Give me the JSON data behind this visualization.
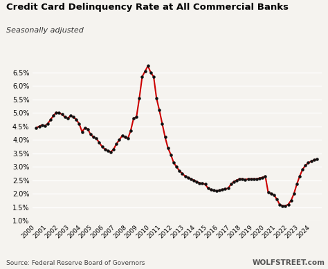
{
  "title": "Credit Card Delinquency Rate at All Commercial Banks",
  "subtitle": "Seasonally adjusted",
  "source": "Source: Federal Reserve Board of Governors",
  "watermark": "WOLFSTREET.com",
  "line_color": "#cc0000",
  "marker_color": "#111111",
  "bg_color": "#f5f3ef",
  "ylim": [
    1.0,
    7.0
  ],
  "yticks": [
    1.0,
    1.5,
    2.0,
    2.5,
    3.0,
    3.5,
    4.0,
    4.5,
    5.0,
    5.5,
    6.0,
    6.5
  ],
  "x_years": [
    2000,
    2001,
    2002,
    2003,
    2004,
    2005,
    2006,
    2007,
    2008,
    2009,
    2010,
    2011,
    2012,
    2013,
    2014,
    2015,
    2016,
    2017,
    2018,
    2019,
    2020,
    2021,
    2022,
    2023,
    2024
  ],
  "data": [
    [
      2000.0,
      4.45
    ],
    [
      2000.25,
      4.5
    ],
    [
      2000.5,
      4.55
    ],
    [
      2000.75,
      4.52
    ],
    [
      2001.0,
      4.6
    ],
    [
      2001.25,
      4.75
    ],
    [
      2001.5,
      4.9
    ],
    [
      2001.75,
      5.02
    ],
    [
      2002.0,
      5.0
    ],
    [
      2002.25,
      4.95
    ],
    [
      2002.5,
      4.85
    ],
    [
      2002.75,
      4.8
    ],
    [
      2003.0,
      4.9
    ],
    [
      2003.25,
      4.85
    ],
    [
      2003.5,
      4.75
    ],
    [
      2003.75,
      4.6
    ],
    [
      2004.0,
      4.3
    ],
    [
      2004.25,
      4.45
    ],
    [
      2004.5,
      4.4
    ],
    [
      2004.75,
      4.2
    ],
    [
      2005.0,
      4.1
    ],
    [
      2005.25,
      4.05
    ],
    [
      2005.5,
      3.9
    ],
    [
      2005.75,
      3.75
    ],
    [
      2006.0,
      3.65
    ],
    [
      2006.25,
      3.6
    ],
    [
      2006.5,
      3.55
    ],
    [
      2006.75,
      3.65
    ],
    [
      2007.0,
      3.85
    ],
    [
      2007.25,
      4.0
    ],
    [
      2007.5,
      4.15
    ],
    [
      2007.75,
      4.1
    ],
    [
      2008.0,
      4.05
    ],
    [
      2008.25,
      4.35
    ],
    [
      2008.5,
      4.8
    ],
    [
      2008.75,
      4.85
    ],
    [
      2009.0,
      5.55
    ],
    [
      2009.25,
      6.35
    ],
    [
      2009.5,
      6.55
    ],
    [
      2009.75,
      6.75
    ],
    [
      2010.0,
      6.5
    ],
    [
      2010.25,
      6.35
    ],
    [
      2010.5,
      5.55
    ],
    [
      2010.75,
      5.1
    ],
    [
      2011.0,
      4.6
    ],
    [
      2011.25,
      4.1
    ],
    [
      2011.5,
      3.7
    ],
    [
      2011.75,
      3.45
    ],
    [
      2012.0,
      3.15
    ],
    [
      2012.25,
      3.0
    ],
    [
      2012.5,
      2.85
    ],
    [
      2012.75,
      2.75
    ],
    [
      2013.0,
      2.65
    ],
    [
      2013.25,
      2.6
    ],
    [
      2013.5,
      2.55
    ],
    [
      2013.75,
      2.5
    ],
    [
      2014.0,
      2.45
    ],
    [
      2014.25,
      2.4
    ],
    [
      2014.5,
      2.38
    ],
    [
      2014.75,
      2.35
    ],
    [
      2015.0,
      2.2
    ],
    [
      2015.25,
      2.15
    ],
    [
      2015.5,
      2.12
    ],
    [
      2015.75,
      2.1
    ],
    [
      2016.0,
      2.12
    ],
    [
      2016.25,
      2.15
    ],
    [
      2016.5,
      2.18
    ],
    [
      2016.75,
      2.2
    ],
    [
      2017.0,
      2.35
    ],
    [
      2017.25,
      2.45
    ],
    [
      2017.5,
      2.5
    ],
    [
      2017.75,
      2.55
    ],
    [
      2018.0,
      2.55
    ],
    [
      2018.25,
      2.52
    ],
    [
      2018.5,
      2.55
    ],
    [
      2018.75,
      2.55
    ],
    [
      2019.0,
      2.55
    ],
    [
      2019.25,
      2.55
    ],
    [
      2019.5,
      2.58
    ],
    [
      2019.75,
      2.6
    ],
    [
      2020.0,
      2.65
    ],
    [
      2020.25,
      2.05
    ],
    [
      2020.5,
      2.0
    ],
    [
      2020.75,
      1.95
    ],
    [
      2021.0,
      1.8
    ],
    [
      2021.25,
      1.6
    ],
    [
      2021.5,
      1.55
    ],
    [
      2021.75,
      1.55
    ],
    [
      2022.0,
      1.6
    ],
    [
      2022.25,
      1.75
    ],
    [
      2022.5,
      2.0
    ],
    [
      2022.75,
      2.35
    ],
    [
      2023.0,
      2.65
    ],
    [
      2023.25,
      2.9
    ],
    [
      2023.5,
      3.05
    ],
    [
      2023.75,
      3.15
    ],
    [
      2024.0,
      3.2
    ],
    [
      2024.25,
      3.25
    ],
    [
      2024.5,
      3.28
    ]
  ]
}
